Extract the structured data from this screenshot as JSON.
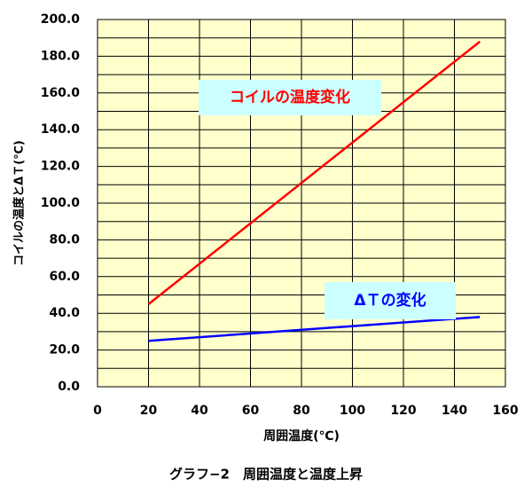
{
  "chart_data": {
    "type": "line",
    "caption": "グラフ−2　周囲温度と温度上昇",
    "x_label": "周囲温度(℃)",
    "y_label": "コイルの温度とΔＴ(℃)",
    "xlim": [
      0,
      160
    ],
    "xticks": [
      0,
      20,
      40,
      60,
      80,
      100,
      120,
      140,
      160
    ],
    "ylim": [
      0,
      200
    ],
    "yticks": [
      {
        "value": 0,
        "label": "0.0"
      },
      {
        "value": 20,
        "label": "20.0"
      },
      {
        "value": 40,
        "label": "40.0"
      },
      {
        "value": 60,
        "label": "60.0"
      },
      {
        "value": 80,
        "label": "80.0"
      },
      {
        "value": 100,
        "label": "100.0"
      },
      {
        "value": 120,
        "label": "120.0"
      },
      {
        "value": 140,
        "label": "140.0"
      },
      {
        "value": 160,
        "label": "160.0"
      },
      {
        "value": 180,
        "label": "180.0"
      },
      {
        "value": 200,
        "label": "200.0"
      }
    ],
    "yminor": [
      10,
      30,
      50,
      70,
      90,
      110,
      130,
      150,
      170,
      190
    ],
    "grid": true,
    "plot_background": "#ffffcc",
    "series": [
      {
        "name": "コイルの温度変化",
        "color": "#ff0000",
        "x": [
          20,
          150
        ],
        "values": [
          45,
          188
        ]
      },
      {
        "name": "ΔＴの変化",
        "color": "#0000ff",
        "x": [
          20,
          150
        ],
        "values": [
          25,
          38
        ]
      }
    ]
  }
}
